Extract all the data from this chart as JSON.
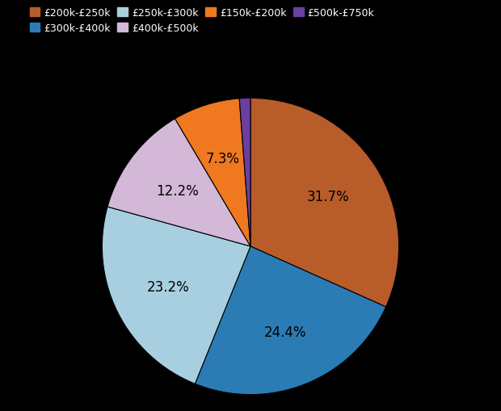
{
  "labels": [
    "£200k-£250k",
    "£300k-£400k",
    "£250k-£300k",
    "£400k-£500k",
    "£150k-£200k",
    "£500k-£750k"
  ],
  "values": [
    31.7,
    24.4,
    23.2,
    12.2,
    7.3,
    1.2
  ],
  "colors": [
    "#b85c2a",
    "#2b7cb5",
    "#a8cfe0",
    "#d4b8d8",
    "#f07820",
    "#6b3fa0"
  ],
  "background_color": "#000000",
  "startangle": 90,
  "pct_fontsize": 12,
  "legend_row1": [
    "£200k-£250k",
    "£300k-£400k",
    "£250k-£300k",
    "£400k-£500k"
  ],
  "legend_row2": [
    "£150k-£200k",
    "£500k-£750k"
  ]
}
